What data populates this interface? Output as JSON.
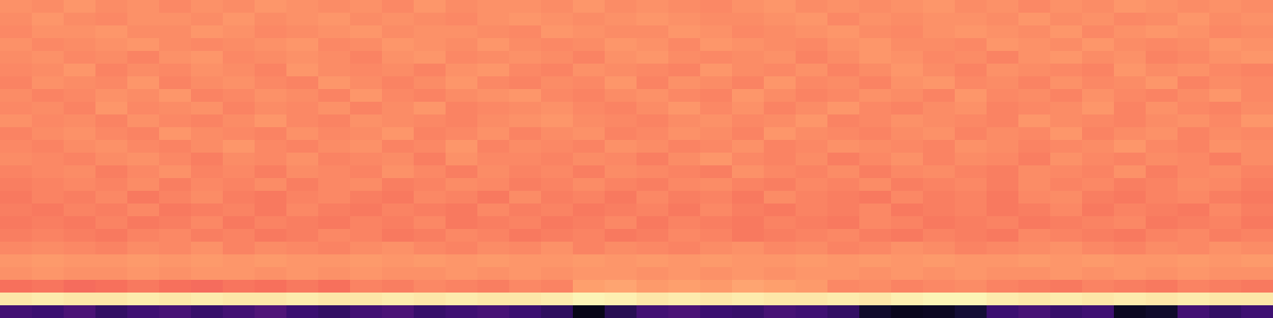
{
  "chart_data": {
    "type": "heatmap",
    "tick_labels": false,
    "zlim": [
      0,
      1
    ],
    "cells": [
      [
        0.77,
        0.76,
        0.78,
        0.76,
        0.77,
        0.75,
        0.77,
        0.76,
        0.78,
        0.77,
        0.76,
        0.77,
        0.75,
        0.78,
        0.76,
        0.77,
        0.77,
        0.76,
        0.78,
        0.76,
        0.77,
        0.76,
        0.75,
        0.77,
        0.78,
        0.76,
        0.77,
        0.76,
        0.77,
        0.78,
        0.76,
        0.77,
        0.75,
        0.77,
        0.76,
        0.78,
        0.77,
        0.76,
        0.77,
        0.76
      ],
      [
        0.76,
        0.78,
        0.76,
        0.75,
        0.77,
        0.77,
        0.76,
        0.78,
        0.76,
        0.77,
        0.78,
        0.76,
        0.77,
        0.76,
        0.75,
        0.77,
        0.78,
        0.77,
        0.76,
        0.77,
        0.78,
        0.77,
        0.76,
        0.76,
        0.77,
        0.78,
        0.75,
        0.77,
        0.76,
        0.77,
        0.77,
        0.76,
        0.78,
        0.76,
        0.77,
        0.75,
        0.76,
        0.78,
        0.76,
        0.77
      ],
      [
        0.75,
        0.77,
        0.77,
        0.78,
        0.76,
        0.76,
        0.78,
        0.77,
        0.75,
        0.76,
        0.77,
        0.78,
        0.76,
        0.77,
        0.77,
        0.76,
        0.75,
        0.78,
        0.77,
        0.76,
        0.76,
        0.78,
        0.77,
        0.75,
        0.76,
        0.77,
        0.78,
        0.76,
        0.75,
        0.77,
        0.78,
        0.77,
        0.76,
        0.78,
        0.75,
        0.77,
        0.78,
        0.77,
        0.75,
        0.76
      ],
      [
        0.77,
        0.75,
        0.76,
        0.77,
        0.78,
        0.76,
        0.75,
        0.76,
        0.77,
        0.78,
        0.75,
        0.76,
        0.78,
        0.77,
        0.76,
        0.78,
        0.76,
        0.75,
        0.76,
        0.78,
        0.77,
        0.75,
        0.78,
        0.77,
        0.76,
        0.75,
        0.77,
        0.78,
        0.76,
        0.76,
        0.75,
        0.78,
        0.77,
        0.76,
        0.78,
        0.76,
        0.75,
        0.76,
        0.78,
        0.77
      ],
      [
        0.76,
        0.77,
        0.75,
        0.76,
        0.74,
        0.77,
        0.78,
        0.75,
        0.76,
        0.77,
        0.76,
        0.74,
        0.77,
        0.78,
        0.75,
        0.76,
        0.77,
        0.76,
        0.74,
        0.77,
        0.78,
        0.76,
        0.75,
        0.76,
        0.77,
        0.74,
        0.76,
        0.78,
        0.77,
        0.75,
        0.76,
        0.74,
        0.77,
        0.78,
        0.76,
        0.77,
        0.74,
        0.75,
        0.77,
        0.78
      ],
      [
        0.75,
        0.76,
        0.78,
        0.74,
        0.76,
        0.75,
        0.77,
        0.76,
        0.74,
        0.78,
        0.76,
        0.75,
        0.76,
        0.74,
        0.77,
        0.78,
        0.75,
        0.74,
        0.77,
        0.76,
        0.75,
        0.74,
        0.78,
        0.76,
        0.75,
        0.77,
        0.74,
        0.76,
        0.78,
        0.76,
        0.74,
        0.77,
        0.76,
        0.75,
        0.74,
        0.78,
        0.76,
        0.77,
        0.75,
        0.74
      ],
      [
        0.74,
        0.77,
        0.76,
        0.75,
        0.78,
        0.74,
        0.76,
        0.77,
        0.75,
        0.74,
        0.78,
        0.76,
        0.74,
        0.76,
        0.78,
        0.75,
        0.74,
        0.76,
        0.75,
        0.78,
        0.74,
        0.77,
        0.76,
        0.74,
        0.78,
        0.75,
        0.76,
        0.74,
        0.77,
        0.78,
        0.75,
        0.76,
        0.74,
        0.77,
        0.75,
        0.76,
        0.78,
        0.74,
        0.76,
        0.75
      ],
      [
        0.76,
        0.74,
        0.75,
        0.77,
        0.76,
        0.78,
        0.74,
        0.75,
        0.77,
        0.76,
        0.74,
        0.78,
        0.75,
        0.74,
        0.76,
        0.77,
        0.78,
        0.75,
        0.74,
        0.76,
        0.77,
        0.75,
        0.74,
        0.78,
        0.76,
        0.74,
        0.75,
        0.77,
        0.76,
        0.74,
        0.78,
        0.75,
        0.76,
        0.74,
        0.77,
        0.75,
        0.74,
        0.76,
        0.78,
        0.75
      ],
      [
        0.75,
        0.76,
        0.74,
        0.78,
        0.75,
        0.76,
        0.77,
        0.74,
        0.76,
        0.75,
        0.77,
        0.74,
        0.76,
        0.78,
        0.74,
        0.75,
        0.76,
        0.77,
        0.75,
        0.74,
        0.76,
        0.78,
        0.75,
        0.77,
        0.74,
        0.76,
        0.78,
        0.75,
        0.74,
        0.76,
        0.77,
        0.74,
        0.75,
        0.76,
        0.78,
        0.74,
        0.77,
        0.75,
        0.74,
        0.76
      ],
      [
        0.77,
        0.75,
        0.76,
        0.74,
        0.77,
        0.75,
        0.74,
        0.76,
        0.78,
        0.75,
        0.74,
        0.77,
        0.76,
        0.75,
        0.74,
        0.76,
        0.77,
        0.78,
        0.76,
        0.75,
        0.74,
        0.76,
        0.77,
        0.75,
        0.76,
        0.78,
        0.74,
        0.75,
        0.77,
        0.76,
        0.75,
        0.74,
        0.78,
        0.76,
        0.75,
        0.74,
        0.76,
        0.77,
        0.75,
        0.78
      ],
      [
        0.74,
        0.76,
        0.77,
        0.75,
        0.74,
        0.78,
        0.76,
        0.75,
        0.74,
        0.77,
        0.75,
        0.76,
        0.78,
        0.74,
        0.75,
        0.77,
        0.74,
        0.76,
        0.77,
        0.74,
        0.75,
        0.77,
        0.76,
        0.74,
        0.78,
        0.76,
        0.75,
        0.74,
        0.76,
        0.77,
        0.74,
        0.76,
        0.75,
        0.78,
        0.74,
        0.76,
        0.77,
        0.74,
        0.76,
        0.75
      ],
      [
        0.75,
        0.74,
        0.76,
        0.77,
        0.75,
        0.74,
        0.76,
        0.78,
        0.75,
        0.74,
        0.76,
        0.77,
        0.74,
        0.75,
        0.78,
        0.74,
        0.76,
        0.75,
        0.74,
        0.77,
        0.76,
        0.74,
        0.75,
        0.77,
        0.74,
        0.75,
        0.77,
        0.76,
        0.75,
        0.74,
        0.77,
        0.76,
        0.74,
        0.75,
        0.76,
        0.78,
        0.75,
        0.74,
        0.77,
        0.76
      ],
      [
        0.76,
        0.75,
        0.74,
        0.76,
        0.77,
        0.75,
        0.73,
        0.76,
        0.75,
        0.77,
        0.74,
        0.75,
        0.76,
        0.73,
        0.77,
        0.75,
        0.75,
        0.74,
        0.76,
        0.75,
        0.73,
        0.76,
        0.78,
        0.75,
        0.74,
        0.76,
        0.73,
        0.75,
        0.77,
        0.74,
        0.76,
        0.75,
        0.73,
        0.77,
        0.75,
        0.74,
        0.76,
        0.75,
        0.73,
        0.76
      ],
      [
        0.74,
        0.75,
        0.76,
        0.73,
        0.75,
        0.77,
        0.74,
        0.75,
        0.73,
        0.76,
        0.75,
        0.74,
        0.77,
        0.75,
        0.73,
        0.76,
        0.74,
        0.75,
        0.73,
        0.76,
        0.75,
        0.74,
        0.73,
        0.77,
        0.75,
        0.74,
        0.76,
        0.73,
        0.75,
        0.76,
        0.74,
        0.73,
        0.76,
        0.75,
        0.74,
        0.77,
        0.73,
        0.75,
        0.76,
        0.74
      ],
      [
        0.73,
        0.74,
        0.75,
        0.74,
        0.76,
        0.73,
        0.75,
        0.74,
        0.76,
        0.73,
        0.75,
        0.76,
        0.73,
        0.74,
        0.76,
        0.75,
        0.73,
        0.74,
        0.76,
        0.74,
        0.73,
        0.75,
        0.76,
        0.74,
        0.73,
        0.75,
        0.74,
        0.76,
        0.73,
        0.74,
        0.75,
        0.73,
        0.76,
        0.74,
        0.75,
        0.73,
        0.74,
        0.76,
        0.75,
        0.73
      ],
      [
        0.72,
        0.74,
        0.73,
        0.75,
        0.72,
        0.74,
        0.76,
        0.73,
        0.72,
        0.74,
        0.75,
        0.73,
        0.72,
        0.75,
        0.74,
        0.72,
        0.76,
        0.73,
        0.74,
        0.72,
        0.75,
        0.73,
        0.74,
        0.72,
        0.76,
        0.74,
        0.73,
        0.72,
        0.75,
        0.73,
        0.74,
        0.72,
        0.75,
        0.76,
        0.73,
        0.72,
        0.74,
        0.75,
        0.73,
        0.72
      ],
      [
        0.73,
        0.72,
        0.74,
        0.73,
        0.75,
        0.72,
        0.73,
        0.74,
        0.72,
        0.75,
        0.73,
        0.72,
        0.74,
        0.73,
        0.72,
        0.75,
        0.73,
        0.74,
        0.72,
        0.73,
        0.74,
        0.72,
        0.75,
        0.73,
        0.72,
        0.74,
        0.73,
        0.75,
        0.72,
        0.73,
        0.74,
        0.72,
        0.73,
        0.75,
        0.72,
        0.74,
        0.73,
        0.72,
        0.75,
        0.73
      ],
      [
        0.72,
        0.73,
        0.72,
        0.74,
        0.72,
        0.73,
        0.75,
        0.72,
        0.74,
        0.73,
        0.72,
        0.74,
        0.73,
        0.75,
        0.72,
        0.73,
        0.74,
        0.72,
        0.73,
        0.75,
        0.72,
        0.74,
        0.73,
        0.72,
        0.74,
        0.73,
        0.72,
        0.75,
        0.74,
        0.72,
        0.73,
        0.74,
        0.72,
        0.73,
        0.74,
        0.75,
        0.72,
        0.73,
        0.74,
        0.72
      ],
      [
        0.73,
        0.74,
        0.73,
        0.72,
        0.74,
        0.75,
        0.73,
        0.74,
        0.72,
        0.73,
        0.75,
        0.74,
        0.72,
        0.73,
        0.75,
        0.74,
        0.72,
        0.73,
        0.74,
        0.72,
        0.73,
        0.75,
        0.74,
        0.72,
        0.73,
        0.74,
        0.75,
        0.73,
        0.72,
        0.74,
        0.73,
        0.72,
        0.75,
        0.74,
        0.73,
        0.72,
        0.74,
        0.75,
        0.73,
        0.74
      ],
      [
        0.75,
        0.76,
        0.75,
        0.74,
        0.76,
        0.75,
        0.77,
        0.74,
        0.76,
        0.75,
        0.74,
        0.76,
        0.77,
        0.75,
        0.74,
        0.76,
        0.75,
        0.77,
        0.74,
        0.76,
        0.75,
        0.74,
        0.76,
        0.77,
        0.75,
        0.76,
        0.74,
        0.75,
        0.77,
        0.76,
        0.74,
        0.75,
        0.76,
        0.77,
        0.75,
        0.74,
        0.76,
        0.75,
        0.77,
        0.76
      ],
      [
        0.78,
        0.79,
        0.78,
        0.78,
        0.79,
        0.78,
        0.79,
        0.78,
        0.79,
        0.78,
        0.78,
        0.79,
        0.78,
        0.79,
        0.78,
        0.79,
        0.78,
        0.78,
        0.79,
        0.78,
        0.79,
        0.78,
        0.79,
        0.78,
        0.78,
        0.79,
        0.78,
        0.79,
        0.78,
        0.79,
        0.78,
        0.78,
        0.79,
        0.78,
        0.79,
        0.78,
        0.78,
        0.79,
        0.78,
        0.79
      ],
      [
        0.77,
        0.78,
        0.77,
        0.77,
        0.78,
        0.77,
        0.78,
        0.78,
        0.77,
        0.78,
        0.77,
        0.78,
        0.77,
        0.77,
        0.78,
        0.77,
        0.78,
        0.77,
        0.78,
        0.78,
        0.77,
        0.78,
        0.77,
        0.78,
        0.77,
        0.78,
        0.78,
        0.77,
        0.78,
        0.77,
        0.78,
        0.77,
        0.77,
        0.78,
        0.77,
        0.78,
        0.77,
        0.78,
        0.77,
        0.77
      ],
      [
        0.7,
        0.71,
        0.69,
        0.7,
        0.72,
        0.7,
        0.69,
        0.71,
        0.7,
        0.72,
        0.7,
        0.74,
        0.73,
        0.75,
        0.74,
        0.73,
        0.75,
        0.74,
        0.8,
        0.81,
        0.79,
        0.8,
        0.79,
        0.81,
        0.8,
        0.79,
        0.75,
        0.76,
        0.74,
        0.75,
        0.76,
        0.74,
        0.73,
        0.72,
        0.74,
        0.73,
        0.72,
        0.74,
        0.73,
        0.72
      ],
      [
        0.95,
        0.96,
        0.95,
        0.95,
        0.96,
        0.95,
        0.96,
        0.95,
        0.95,
        0.96,
        0.95,
        0.95,
        0.96,
        0.95,
        0.96,
        0.95,
        0.95,
        0.96,
        0.98,
        0.97,
        0.95,
        0.96,
        0.95,
        0.96,
        0.95,
        0.95,
        0.96,
        0.95,
        0.97,
        0.98,
        0.98,
        0.96,
        0.95,
        0.96,
        0.95,
        0.96,
        0.95,
        0.96,
        0.95,
        0.95
      ],
      [
        0.22,
        0.2,
        0.24,
        0.18,
        0.21,
        0.23,
        0.19,
        0.22,
        0.25,
        0.2,
        0.18,
        0.22,
        0.24,
        0.19,
        0.21,
        0.23,
        0.2,
        0.17,
        0.04,
        0.15,
        0.22,
        0.24,
        0.2,
        0.19,
        0.23,
        0.21,
        0.18,
        0.08,
        0.05,
        0.06,
        0.1,
        0.2,
        0.23,
        0.19,
        0.21,
        0.06,
        0.08,
        0.22,
        0.18,
        0.21
      ]
    ]
  }
}
